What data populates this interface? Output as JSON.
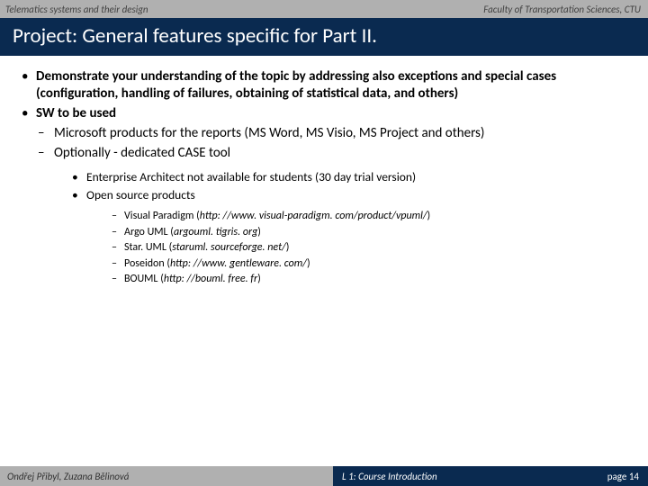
{
  "header": {
    "left": "Telematics systems and their design",
    "right": "Faculty of Transportation Sciences, CTU"
  },
  "title": "Project: General features specific for Part II.",
  "bullets": {
    "b1": "Demonstrate your understanding of the topic by addressing also exceptions and special cases (configuration, handling of failures, obtaining of statistical data, and others)",
    "b2": "SW to be used",
    "b2a": "Microsoft products for the reports (MS Word, MS Visio, MS Project and others)",
    "b2b": "Optionally - dedicated CASE tool",
    "b2b1": "Enterprise Architect not available for students (30 day trial version)",
    "b2b2": "Open source products",
    "p1a": "Visual Paradigm (",
    "p1b": "http: //www. visual-paradigm. com/product/vpuml/",
    "p1c": ")",
    "p2a": "Argo UML (",
    "p2b": "argouml. tigris. org",
    "p2c": ")",
    "p3a": "Star. UML (",
    "p3b": "staruml. sourceforge. net/",
    "p3c": ")",
    "p4a": "Poseidon (",
    "p4b": "http: //www. gentleware. com/",
    "p4c": ")",
    "p5a": "BOUML (",
    "p5b": "http: //bouml. free. fr",
    "p5c": ")"
  },
  "footer": {
    "authors": "Ondřej Přibyl, Zuzana Bělinová",
    "lecture": "L 1: Course Introduction",
    "page": "page 14"
  }
}
